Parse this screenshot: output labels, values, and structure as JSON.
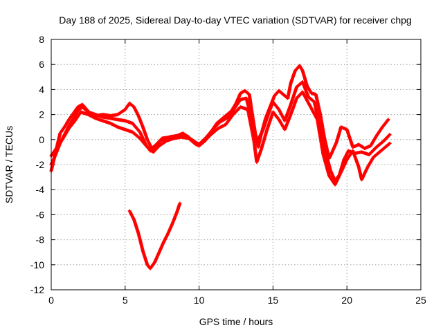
{
  "chart_data": {
    "type": "scatter",
    "title": "Day 188 of 2025, Sidereal Day-to-day VTEC variation (SDTVAR) for receiver chpg",
    "xlabel": "GPS time / hours",
    "ylabel": "SDTVAR / TECUs",
    "xlim": [
      0,
      25
    ],
    "ylim": [
      -12,
      8
    ],
    "xticks": [
      0,
      5,
      10,
      15,
      20,
      25
    ],
    "yticks": [
      -12,
      -10,
      -8,
      -6,
      -4,
      -2,
      0,
      2,
      4,
      6,
      8
    ],
    "xtick_labels": [
      "0",
      "5",
      "10",
      "15",
      "20",
      "25"
    ],
    "ytick_labels": [
      "-12",
      "-10",
      "-8",
      "-6",
      "-4",
      "-2",
      "0",
      "2",
      "4",
      "6",
      "8"
    ],
    "grid": true,
    "marker": "+",
    "color": "#ff0000",
    "series": [
      {
        "name": "track-a",
        "points": [
          [
            0,
            -2.5
          ],
          [
            0.2,
            -1.5
          ],
          [
            0.4,
            -0.5
          ],
          [
            0.6,
            0.5
          ],
          [
            0.9,
            1.0
          ],
          [
            1.2,
            1.6
          ],
          [
            1.5,
            2.1
          ],
          [
            1.8,
            2.6
          ],
          [
            2.1,
            2.8
          ],
          [
            2.4,
            2.4
          ],
          [
            2.7,
            2.0
          ],
          [
            3.0,
            1.9
          ],
          [
            3.5,
            2.0
          ],
          [
            4.0,
            1.9
          ],
          [
            4.5,
            2.0
          ],
          [
            5.0,
            2.4
          ],
          [
            5.3,
            2.9
          ],
          [
            5.6,
            2.6
          ],
          [
            5.9,
            1.9
          ],
          [
            6.2,
            1.0
          ],
          [
            6.5,
            0.0
          ],
          [
            6.8,
            -0.7
          ],
          [
            7.1,
            -0.4
          ],
          [
            7.5,
            0.1
          ],
          [
            8.0,
            0.2
          ],
          [
            8.5,
            0.3
          ],
          [
            8.9,
            0.5
          ],
          [
            9.3,
            0.2
          ],
          [
            9.7,
            -0.3
          ],
          [
            10.0,
            -0.5
          ],
          [
            10.4,
            -0.1
          ],
          [
            10.8,
            0.6
          ],
          [
            11.2,
            1.3
          ],
          [
            11.5,
            1.6
          ],
          [
            11.8,
            1.9
          ],
          [
            12.2,
            2.3
          ],
          [
            12.5,
            2.9
          ],
          [
            12.8,
            3.7
          ],
          [
            13.1,
            3.9
          ],
          [
            13.4,
            3.6
          ],
          [
            13.6,
            2.0
          ],
          [
            13.8,
            0.5
          ],
          [
            14.0,
            -0.6
          ],
          [
            14.2,
            0.4
          ],
          [
            14.5,
            1.7
          ],
          [
            14.8,
            2.6
          ],
          [
            15.1,
            3.5
          ],
          [
            15.4,
            3.9
          ],
          [
            15.7,
            3.6
          ],
          [
            16.0,
            3.3
          ],
          [
            16.2,
            4.5
          ],
          [
            16.5,
            5.5
          ],
          [
            16.8,
            5.9
          ],
          [
            17.0,
            5.5
          ],
          [
            17.3,
            4.3
          ],
          [
            17.6,
            3.7
          ],
          [
            17.9,
            3.6
          ],
          [
            18.2,
            2.0
          ],
          [
            18.5,
            0.0
          ],
          [
            18.8,
            -1.5
          ],
          [
            19.0,
            -1.0
          ],
          [
            19.3,
            -0.2
          ],
          [
            19.6,
            1.0
          ],
          [
            20.0,
            0.8
          ],
          [
            20.4,
            -0.6
          ],
          [
            20.8,
            -0.4
          ],
          [
            21.2,
            -0.7
          ],
          [
            21.6,
            -0.5
          ],
          [
            22.0,
            0.3
          ],
          [
            22.4,
            1.0
          ],
          [
            22.8,
            1.6
          ]
        ]
      },
      {
        "name": "track-b",
        "points": [
          [
            0,
            -2.0
          ],
          [
            0.3,
            -1.2
          ],
          [
            0.6,
            -0.3
          ],
          [
            0.9,
            0.4
          ],
          [
            1.2,
            1.1
          ],
          [
            1.5,
            1.7
          ],
          [
            1.8,
            2.3
          ],
          [
            2.1,
            2.6
          ],
          [
            2.5,
            2.2
          ],
          [
            3.0,
            2.0
          ],
          [
            3.5,
            1.8
          ],
          [
            4.0,
            1.7
          ],
          [
            4.5,
            1.6
          ],
          [
            5.0,
            1.5
          ],
          [
            5.5,
            1.3
          ],
          [
            6.0,
            0.6
          ],
          [
            6.4,
            -0.4
          ],
          [
            6.7,
            -0.9
          ],
          [
            7.0,
            -0.6
          ],
          [
            7.4,
            -0.1
          ],
          [
            8.0,
            0.2
          ],
          [
            8.5,
            0.3
          ],
          [
            9.0,
            0.3
          ],
          [
            9.5,
            0.0
          ],
          [
            10.0,
            -0.4
          ],
          [
            10.5,
            0.2
          ],
          [
            11.0,
            0.9
          ],
          [
            11.4,
            1.4
          ],
          [
            12.0,
            1.8
          ],
          [
            12.4,
            2.5
          ],
          [
            12.8,
            3.2
          ],
          [
            13.2,
            3.3
          ],
          [
            13.6,
            1.4
          ],
          [
            13.9,
            -0.2
          ],
          [
            14.3,
            0.7
          ],
          [
            14.7,
            2.1
          ],
          [
            15.0,
            3.0
          ],
          [
            15.4,
            2.4
          ],
          [
            15.8,
            1.5
          ],
          [
            16.2,
            2.8
          ],
          [
            16.6,
            4.2
          ],
          [
            17.0,
            4.6
          ],
          [
            17.4,
            3.4
          ],
          [
            17.8,
            3.0
          ],
          [
            18.1,
            1.4
          ],
          [
            18.5,
            -0.8
          ],
          [
            18.9,
            -2.5
          ],
          [
            19.2,
            -3.3
          ],
          [
            19.5,
            -2.8
          ],
          [
            19.8,
            -1.6
          ],
          [
            20.1,
            -0.9
          ],
          [
            20.5,
            -1.1
          ],
          [
            21.0,
            -1.0
          ],
          [
            21.5,
            -1.2
          ],
          [
            22.0,
            -0.6
          ],
          [
            22.5,
            -0.1
          ],
          [
            22.9,
            0.4
          ]
        ]
      },
      {
        "name": "track-c",
        "points": [
          [
            0,
            -1.3
          ],
          [
            0.4,
            -0.6
          ],
          [
            0.8,
            0.1
          ],
          [
            1.2,
            0.9
          ],
          [
            1.6,
            1.5
          ],
          [
            2.0,
            2.2
          ],
          [
            2.5,
            2.0
          ],
          [
            3.0,
            1.7
          ],
          [
            3.5,
            1.5
          ],
          [
            4.0,
            1.3
          ],
          [
            4.5,
            1.0
          ],
          [
            5.0,
            0.8
          ],
          [
            5.5,
            0.6
          ],
          [
            6.0,
            0.1
          ],
          [
            6.5,
            -0.6
          ],
          [
            6.9,
            -1.0
          ],
          [
            7.3,
            -0.5
          ],
          [
            7.8,
            -0.1
          ],
          [
            8.3,
            0.1
          ],
          [
            8.8,
            0.2
          ],
          [
            9.3,
            0.1
          ],
          [
            9.8,
            -0.4
          ],
          [
            10.3,
            -0.2
          ],
          [
            10.8,
            0.4
          ],
          [
            11.3,
            0.9
          ],
          [
            11.8,
            1.2
          ],
          [
            12.3,
            2.0
          ],
          [
            12.8,
            2.6
          ],
          [
            13.3,
            2.4
          ],
          [
            13.7,
            0.0
          ],
          [
            13.9,
            -1.8
          ],
          [
            14.2,
            -0.8
          ],
          [
            14.6,
            0.8
          ],
          [
            15.0,
            2.2
          ],
          [
            15.4,
            1.6
          ],
          [
            15.8,
            0.8
          ],
          [
            16.2,
            2.0
          ],
          [
            16.6,
            3.3
          ],
          [
            17.0,
            3.8
          ],
          [
            17.5,
            2.7
          ],
          [
            18.0,
            1.6
          ],
          [
            18.4,
            -1.2
          ],
          [
            18.8,
            -2.9
          ],
          [
            19.2,
            -3.6
          ],
          [
            19.6,
            -2.6
          ],
          [
            20.0,
            -1.6
          ],
          [
            20.4,
            -0.9
          ],
          [
            20.8,
            -2.2
          ],
          [
            21.0,
            -3.2
          ],
          [
            21.4,
            -2.2
          ],
          [
            21.8,
            -1.4
          ],
          [
            22.3,
            -0.9
          ],
          [
            22.9,
            -0.3
          ]
        ]
      },
      {
        "name": "track-d",
        "points": [
          [
            5.3,
            -5.7
          ],
          [
            5.6,
            -6.4
          ],
          [
            5.9,
            -7.5
          ],
          [
            6.2,
            -8.9
          ],
          [
            6.5,
            -10.0
          ],
          [
            6.7,
            -10.3
          ],
          [
            7.0,
            -9.8
          ],
          [
            7.3,
            -9.0
          ],
          [
            7.6,
            -8.2
          ],
          [
            7.9,
            -7.5
          ],
          [
            8.2,
            -6.7
          ],
          [
            8.5,
            -5.8
          ],
          [
            8.7,
            -5.1
          ]
        ]
      }
    ]
  }
}
